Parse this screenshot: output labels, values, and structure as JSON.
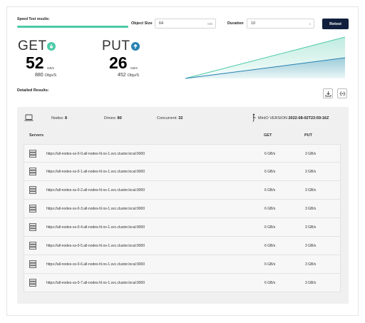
{
  "speed_test": {
    "label": "Speed Test results:",
    "progress": 1.0
  },
  "object_size": {
    "label": "Object Size",
    "value": "64",
    "unit": "MB"
  },
  "duration": {
    "label": "Duration",
    "value": "10",
    "unit": "s"
  },
  "retest_label": "Retest",
  "get": {
    "title": "GET",
    "icon": "arrow-down-icon",
    "value": "52",
    "unit": "GB/s",
    "objs": "880",
    "objs_unit": "Objs/S",
    "color": "#4cc9a6"
  },
  "put": {
    "title": "PUT",
    "icon": "arrow-up-icon",
    "value": "26",
    "unit": "GB/s",
    "objs": "452",
    "objs_unit": "Objs/S",
    "color": "#2781b3"
  },
  "detailed_label": "Detailed Results:",
  "summary": {
    "nodes_label": "Nodes:",
    "nodes": "8",
    "drives_label": "Drives:",
    "drives": "80",
    "concurrent_label": "Concurrent:",
    "concurrent": "32",
    "version_label": "MinIO VERSION",
    "version": "2022-08-02T23:59:16Z"
  },
  "columns": {
    "servers": "Servers",
    "get": "GET",
    "put": "PUT"
  },
  "servers": [
    {
      "url": "https://all-nodes-ss-0-0.all-nodes-hl.ns-1.svc.cluster.local:9000",
      "get": "6 GB/s",
      "put": "3 GB/s"
    },
    {
      "url": "https://all-nodes-ss-0-1.all-nodes-hl.ns-1.svc.cluster.local:9000",
      "get": "6 GB/s",
      "put": "3 GB/s"
    },
    {
      "url": "https://all-nodes-ss-0-2.all-nodes-hl.ns-1.svc.cluster.local:9000",
      "get": "6 GB/s",
      "put": "3 GB/s"
    },
    {
      "url": "https://all-nodes-ss-0-3.all-nodes-hl.ns-1.svc.cluster.local:9000",
      "get": "6 GB/s",
      "put": "3 GB/s"
    },
    {
      "url": "https://all-nodes-ss-0-4.all-nodes-hl.ns-1.svc.cluster.local:9000",
      "get": "6 GB/s",
      "put": "3 GB/s"
    },
    {
      "url": "https://all-nodes-ss-0-5.all-nodes-hl.ns-1.svc.cluster.local:9000",
      "get": "6 GB/s",
      "put": "3 GB/s"
    },
    {
      "url": "https://all-nodes-ss-0-6.all-nodes-hl.ns-1.svc.cluster.local:9000",
      "get": "6 GB/s",
      "put": "3 GB/s"
    },
    {
      "url": "https://all-nodes-ss-0-7.all-nodes-hl.ns-1.svc.cluster.local:9000",
      "get": "6 GB/s",
      "put": "3 GB/s"
    }
  ]
}
